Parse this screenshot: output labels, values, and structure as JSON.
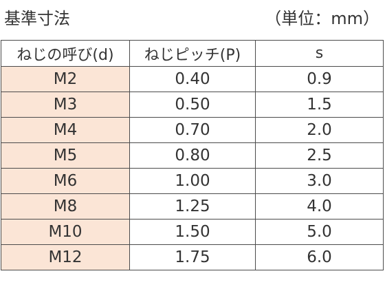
{
  "title": "基準寸法",
  "unit_note": "（単位：mm）",
  "table": {
    "headers": [
      "ねじの呼び(d)",
      "ねじピッチ(P)",
      "s"
    ],
    "rows": [
      [
        "M2",
        "0.40",
        "0.9"
      ],
      [
        "M3",
        "0.50",
        "1.5"
      ],
      [
        "M4",
        "0.70",
        "2.0"
      ],
      [
        "M5",
        "0.80",
        "2.5"
      ],
      [
        "M6",
        "1.00",
        "3.0"
      ],
      [
        "M8",
        "1.25",
        "4.0"
      ],
      [
        "M10",
        "1.50",
        "5.0"
      ],
      [
        "M12",
        "1.75",
        "6.0"
      ]
    ]
  },
  "colors": {
    "key_column_fill": "#fbe5d6",
    "border": "#4a4a4a",
    "text": "#333333"
  }
}
